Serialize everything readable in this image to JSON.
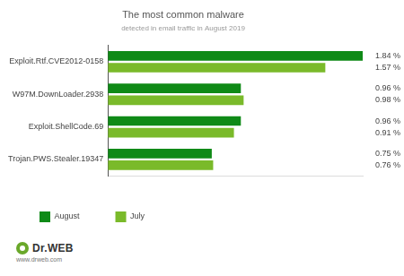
{
  "chart_data": {
    "type": "bar",
    "title": "The most common malware",
    "subtitle": "detected in email traffic in August 2019",
    "orientation": "horizontal",
    "categories": [
      "Exploit.Rtf.CVE2012-0158",
      "W97M.DownLoader.2938",
      "Exploit.ShellCode.69",
      "Trojan.PWS.Stealer.19347"
    ],
    "series": [
      {
        "name": "August",
        "color": "#0f8a17",
        "values": [
          1.84,
          0.96,
          0.96,
          0.75
        ],
        "value_labels": [
          "1.84 %",
          "0.96 %",
          "0.96 %",
          "0.75 %"
        ]
      },
      {
        "name": "July",
        "color": "#7aba2a",
        "values": [
          1.57,
          0.98,
          0.91,
          0.76
        ],
        "value_labels": [
          "1.57 %",
          "0.98 %",
          "0.91 %",
          "0.76 %"
        ]
      }
    ],
    "xlim": [
      0,
      1.84
    ],
    "grid": false,
    "legend": "bottom-left",
    "data_labels": true,
    "tick_labels": "y",
    "annotations": [
      "Dr.WEB",
      "www.drweb.com"
    ]
  }
}
